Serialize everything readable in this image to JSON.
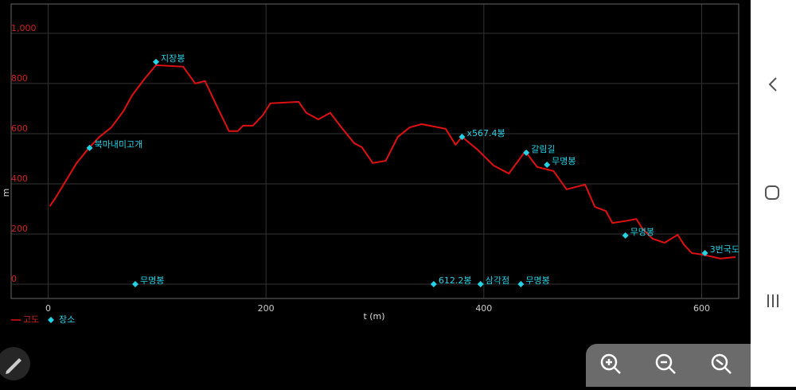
{
  "chart_data": {
    "type": "line",
    "xlabel": "t (m)",
    "ylabel": "m",
    "xlim": [
      -34,
      634
    ],
    "ylim": [
      -57,
      1117
    ],
    "xticks": [
      0,
      200,
      400,
      600
    ],
    "yticks": [
      0,
      200,
      400,
      600,
      800,
      {
        "value": 1000,
        "label": "1,000"
      }
    ],
    "grid": true,
    "series": [
      {
        "name": "고도",
        "color": "#e01010",
        "x": [
          1.5,
          7,
          15,
          26,
          38,
          47,
          58,
          69,
          77,
          88,
          99,
          124,
          135,
          144,
          153,
          166,
          174,
          179,
          188,
          197,
          204,
          230,
          237,
          248,
          259,
          268,
          281,
          288,
          298,
          310,
          321,
          332,
          343,
          365,
          374,
          380,
          394,
          409,
          423,
          438,
          449,
          464,
          476,
          493,
          502,
          512,
          518,
          529,
          540,
          546,
          555,
          566,
          578,
          584,
          591,
          602,
          617,
          631
        ],
        "values": [
          311,
          346,
          403,
          482,
          546,
          587,
          625,
          689,
          752,
          816,
          873,
          867,
          800,
          810,
          727,
          610,
          610,
          632,
          632,
          673,
          721,
          727,
          683,
          657,
          683,
          632,
          562,
          546,
          483,
          492,
          587,
          625,
          638,
          619,
          556,
          587,
          537,
          473,
          441,
          530,
          467,
          451,
          378,
          397,
          308,
          292,
          244,
          251,
          260,
          219,
          181,
          165,
          197,
          156,
          124,
          117,
          102,
          108
        ]
      },
      {
        "name": "장소",
        "type": "scatter",
        "color": "#22d3e6",
        "x": [
          99,
          38,
          380,
          439,
          458,
          530,
          603,
          80,
          354,
          397,
          434
        ],
        "values": [
          886,
          543,
          587,
          524,
          476,
          194,
          124,
          0,
          0,
          0,
          0
        ],
        "labels": [
          "지장봉",
          "북마내미고개",
          "x567.4봉",
          "갈림길",
          "무명봉",
          "무명봉",
          "3번국도",
          "무명봉",
          "612.2봉",
          "삼각점",
          "무명봉"
        ]
      }
    ]
  }
}
